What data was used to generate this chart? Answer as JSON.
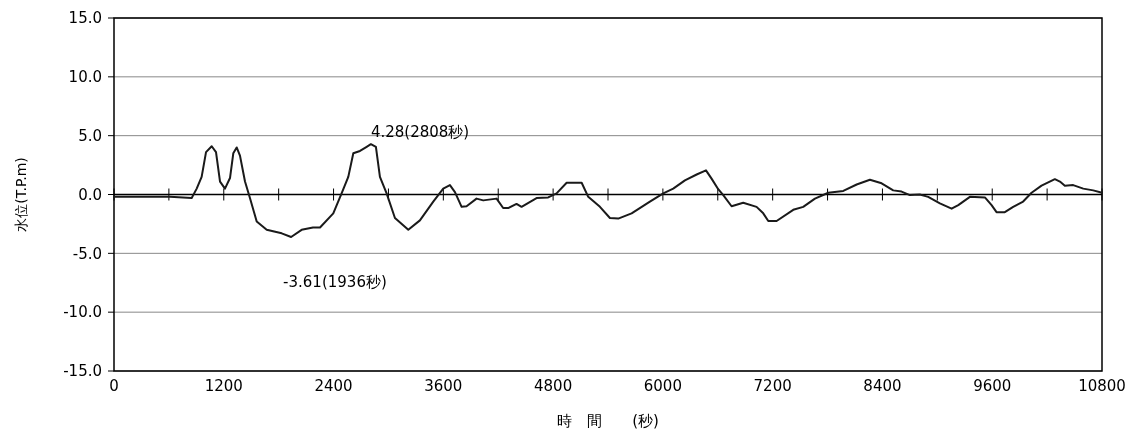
{
  "chart_data": {
    "type": "line",
    "xlabel": "時　間　　(秒)",
    "ylabel": "水位(T.P.m)",
    "x": [
      0,
      612,
      849,
      904,
      958,
      1006,
      1068,
      1115,
      1159,
      1213,
      1268,
      1304,
      1341,
      1377,
      1432,
      1486,
      1560,
      1669,
      1833,
      1936,
      2051,
      2175,
      2252,
      2397,
      2488,
      2561,
      2616,
      2689,
      2762,
      2808,
      2863,
      2907,
      2980,
      3071,
      3217,
      3344,
      3490,
      3599,
      3672,
      3727,
      3800,
      3854,
      3963,
      4036,
      4182,
      4254,
      4309,
      4400,
      4455,
      4619,
      4746,
      4838,
      4948,
      5112,
      5184,
      5312,
      5421,
      5512,
      5658,
      5858,
      6004,
      6113,
      6241,
      6369,
      6471,
      6532,
      6605,
      6660,
      6751,
      6878,
      7024,
      7097,
      7152,
      7243,
      7425,
      7534,
      7662,
      7808,
      7972,
      8118,
      8263,
      8391,
      8518,
      8609,
      8700,
      8809,
      8900,
      9028,
      9156,
      9229,
      9356,
      9520,
      9593,
      9647,
      9738,
      9829,
      9938,
      10030,
      10139,
      10285,
      10340,
      10394,
      10485,
      10595,
      10704,
      10800
    ],
    "series": [
      {
        "color": "#1a1a1a",
        "values": [
          -0.2,
          -0.2,
          -0.3,
          0.5,
          1.5,
          3.6,
          4.1,
          3.6,
          1.1,
          0.5,
          1.4,
          3.5,
          4.0,
          3.3,
          1.1,
          -0.3,
          -2.3,
          -3.0,
          -3.3,
          -3.61,
          -3.0,
          -2.8,
          -2.8,
          -1.6,
          0.1,
          1.5,
          3.5,
          3.7,
          4.05,
          4.28,
          4.05,
          1.5,
          0.1,
          -2.0,
          -3.0,
          -2.2,
          -0.6,
          0.5,
          0.8,
          0.2,
          -1.05,
          -1.0,
          -0.35,
          -0.5,
          -0.35,
          -1.15,
          -1.15,
          -0.8,
          -1.05,
          -0.3,
          -0.25,
          0.1,
          1.0,
          1.0,
          -0.2,
          -1.05,
          -2.0,
          -2.05,
          -1.6,
          -0.6,
          0.1,
          0.5,
          1.2,
          1.7,
          2.05,
          1.35,
          0.45,
          -0.05,
          -1.0,
          -0.7,
          -1.05,
          -1.6,
          -2.25,
          -2.25,
          -1.3,
          -1.05,
          -0.35,
          0.15,
          0.3,
          0.85,
          1.25,
          0.95,
          0.35,
          0.25,
          -0.05,
          0.0,
          -0.2,
          -0.75,
          -1.2,
          -0.9,
          -0.2,
          -0.25,
          -0.9,
          -1.5,
          -1.5,
          -1.05,
          -0.6,
          0.15,
          0.75,
          1.3,
          1.1,
          0.75,
          0.8,
          0.5,
          0.35,
          0.15
        ]
      }
    ],
    "xlim": [
      0,
      10800
    ],
    "xticks": [
      0,
      {
        "value": 600,
        "label": null
      },
      1200,
      {
        "value": 1800,
        "label": null
      },
      2400,
      {
        "value": 3000,
        "label": null
      },
      3600,
      {
        "value": 4200,
        "label": null
      },
      4800,
      {
        "value": 5400,
        "label": null
      },
      6000,
      {
        "value": 6600,
        "label": null
      },
      7200,
      {
        "value": 7800,
        "label": null
      },
      8400,
      {
        "value": 9000,
        "label": null
      },
      9600,
      {
        "value": 10200,
        "label": null
      },
      10800
    ],
    "ylim": [
      -15,
      15
    ],
    "yticks": [
      {
        "value": -15,
        "label": "-15.0"
      },
      {
        "value": -10,
        "label": "-10.0"
      },
      {
        "value": -5,
        "label": "-5.0"
      },
      {
        "value": 0,
        "label": "0.0"
      },
      {
        "value": 5,
        "label": "5.0"
      },
      {
        "value": 10,
        "label": "10.0"
      },
      {
        "value": 15,
        "label": "15.0"
      }
    ],
    "grid": "y",
    "marker": "none",
    "line_style": "solid",
    "annotations": [
      {
        "text": "4.28(2808秒)",
        "x": 2808,
        "y": 4.28
      },
      {
        "text": "-3.61(1936秒)",
        "x": 1936,
        "y": -3.61
      }
    ]
  }
}
